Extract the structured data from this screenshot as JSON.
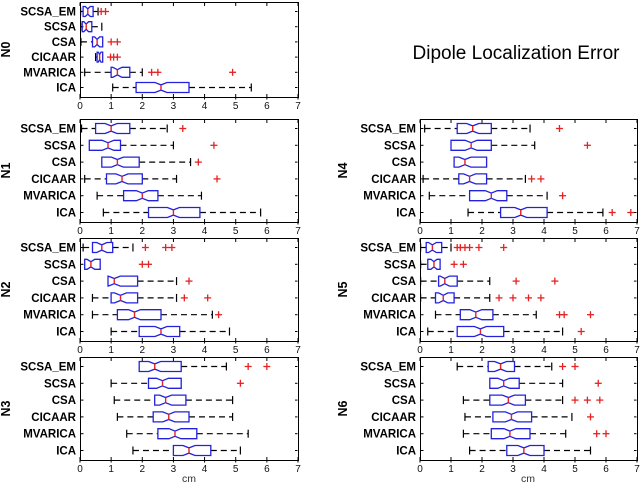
{
  "title": "Dipole Localization Error",
  "xlabel": "cm",
  "methods": [
    "SCSA_EM",
    "SCSA",
    "CSA",
    "CICAAR",
    "MVARICA",
    "ICA"
  ],
  "x_ticks": [
    "0",
    "1",
    "2",
    "3",
    "4",
    "5",
    "6",
    "7"
  ],
  "colors": {
    "box": "#2222dd",
    "median": "#e62222",
    "outlier": "#e62222",
    "whisker": "#000000",
    "axis": "#000000"
  },
  "chart_data": {
    "type": "box",
    "orientation": "horizontal",
    "title": "Dipole Localization Error",
    "xlabel": "cm",
    "xlim": [
      0,
      7
    ],
    "grid": false,
    "groups": [
      {
        "name": "N0",
        "boxes": [
          {
            "method": "SCSA_EM",
            "whislo": 0.02,
            "q1": 0.1,
            "med": 0.25,
            "q3": 0.42,
            "whishi": 0.58,
            "fliers": [
              0.68,
              0.82
            ]
          },
          {
            "method": "SCSA",
            "whislo": 0.02,
            "q1": 0.07,
            "med": 0.2,
            "q3": 0.38,
            "whishi": 0.7,
            "fliers": []
          },
          {
            "method": "CSA",
            "whislo": 0.03,
            "q1": 0.4,
            "med": 0.55,
            "q3": 0.73,
            "whishi": 0.73,
            "fliers": [
              1.0,
              1.2
            ]
          },
          {
            "method": "CICAAR",
            "whislo": 0.5,
            "q1": 0.55,
            "med": 0.63,
            "q3": 0.73,
            "whishi": 0.73,
            "fliers": [
              0.98,
              1.08,
              1.2
            ]
          },
          {
            "method": "MVARICA",
            "whislo": 0.15,
            "q1": 1.0,
            "med": 1.2,
            "q3": 1.6,
            "whishi": 2.0,
            "fliers": [
              2.3,
              2.5,
              4.9
            ]
          },
          {
            "method": "ICA",
            "whislo": 1.05,
            "q1": 1.8,
            "med": 2.6,
            "q3": 3.5,
            "whishi": 5.5,
            "fliers": []
          }
        ]
      },
      {
        "name": "N1",
        "boxes": [
          {
            "method": "SCSA_EM",
            "whislo": 0.05,
            "q1": 0.5,
            "med": 1.0,
            "q3": 1.6,
            "whishi": 2.8,
            "fliers": [
              3.3
            ]
          },
          {
            "method": "SCSA",
            "whislo": 0.3,
            "q1": 0.3,
            "med": 0.9,
            "q3": 1.3,
            "whishi": 3.0,
            "fliers": [
              4.3
            ]
          },
          {
            "method": "CSA",
            "whislo": 0.7,
            "q1": 0.7,
            "med": 1.2,
            "q3": 1.9,
            "whishi": 3.55,
            "fliers": [
              3.8
            ]
          },
          {
            "method": "CICAAR",
            "whislo": 0.15,
            "q1": 0.85,
            "med": 1.35,
            "q3": 2.0,
            "whishi": 3.1,
            "fliers": [
              4.4
            ]
          },
          {
            "method": "MVARICA",
            "whislo": 0.55,
            "q1": 1.4,
            "med": 2.0,
            "q3": 2.5,
            "whishi": 3.9,
            "fliers": []
          },
          {
            "method": "ICA",
            "whislo": 0.75,
            "q1": 2.2,
            "med": 3.0,
            "q3": 3.85,
            "whishi": 5.8,
            "fliers": []
          }
        ]
      },
      {
        "name": "N2",
        "boxes": [
          {
            "method": "SCSA_EM",
            "whislo": 0.1,
            "q1": 0.4,
            "med": 0.7,
            "q3": 1.05,
            "whishi": 1.7,
            "fliers": [
              2.1,
              2.75,
              2.95
            ]
          },
          {
            "method": "SCSA",
            "whislo": 0.15,
            "q1": 0.15,
            "med": 0.35,
            "q3": 0.65,
            "whishi": 0.65,
            "fliers": [
              2.0,
              2.2
            ]
          },
          {
            "method": "CSA",
            "whislo": 0.9,
            "q1": 0.9,
            "med": 1.1,
            "q3": 1.85,
            "whishi": 3.1,
            "fliers": [
              3.5
            ]
          },
          {
            "method": "CICAAR",
            "whislo": 0.4,
            "q1": 1.0,
            "med": 1.3,
            "q3": 1.85,
            "whishi": 3.1,
            "fliers": [
              3.35,
              4.1
            ]
          },
          {
            "method": "MVARICA",
            "whislo": 0.4,
            "q1": 1.2,
            "med": 1.75,
            "q3": 2.6,
            "whishi": 4.25,
            "fliers": [
              4.45
            ]
          },
          {
            "method": "ICA",
            "whislo": 1.0,
            "q1": 1.9,
            "med": 2.6,
            "q3": 3.2,
            "whishi": 4.8,
            "fliers": []
          }
        ]
      },
      {
        "name": "N3",
        "boxes": [
          {
            "method": "SCSA_EM",
            "whislo": 1.9,
            "q1": 1.9,
            "med": 2.4,
            "q3": 3.25,
            "whishi": 4.7,
            "fliers": [
              5.4,
              6.0
            ]
          },
          {
            "method": "SCSA",
            "whislo": 1.0,
            "q1": 2.2,
            "med": 2.65,
            "q3": 3.25,
            "whishi": 3.25,
            "fliers": [
              5.15
            ]
          },
          {
            "method": "CSA",
            "whislo": 1.1,
            "q1": 2.4,
            "med": 2.75,
            "q3": 3.4,
            "whishi": 4.9,
            "fliers": []
          },
          {
            "method": "CICAAR",
            "whislo": 1.2,
            "q1": 2.35,
            "med": 2.85,
            "q3": 3.5,
            "whishi": 4.9,
            "fliers": []
          },
          {
            "method": "MVARICA",
            "whislo": 1.5,
            "q1": 2.5,
            "med": 3.05,
            "q3": 3.75,
            "whishi": 5.4,
            "fliers": []
          },
          {
            "method": "ICA",
            "whislo": 1.7,
            "q1": 3.0,
            "med": 3.5,
            "q3": 4.2,
            "whishi": 5.15,
            "fliers": []
          }
        ]
      },
      {
        "name": "N4",
        "boxes": [
          {
            "method": "SCSA_EM",
            "whislo": 0.15,
            "q1": 1.2,
            "med": 1.7,
            "q3": 2.3,
            "whishi": 3.55,
            "fliers": [
              4.5
            ]
          },
          {
            "method": "SCSA",
            "whislo": 1.0,
            "q1": 1.0,
            "med": 1.65,
            "q3": 2.3,
            "whishi": 3.7,
            "fliers": [
              5.4
            ]
          },
          {
            "method": "CSA",
            "whislo": 1.1,
            "q1": 1.1,
            "med": 1.45,
            "q3": 2.15,
            "whishi": 2.15,
            "fliers": []
          },
          {
            "method": "CICAAR",
            "whislo": 0.1,
            "q1": 1.25,
            "med": 1.6,
            "q3": 2.15,
            "whishi": 3.4,
            "fliers": [
              3.6,
              3.9
            ]
          },
          {
            "method": "MVARICA",
            "whislo": 0.3,
            "q1": 1.6,
            "med": 2.3,
            "q3": 2.8,
            "whishi": 4.1,
            "fliers": [
              4.6
            ]
          },
          {
            "method": "ICA",
            "whislo": 1.55,
            "q1": 2.6,
            "med": 3.25,
            "q3": 4.1,
            "whishi": 5.9,
            "fliers": [
              6.2,
              6.8
            ]
          }
        ]
      },
      {
        "name": "N5",
        "boxes": [
          {
            "method": "SCSA_EM",
            "whislo": 0.02,
            "q1": 0.2,
            "med": 0.4,
            "q3": 0.7,
            "whishi": 1.0,
            "fliers": [
              1.2,
              1.3,
              1.45,
              1.6,
              1.9,
              2.7
            ]
          },
          {
            "method": "SCSA",
            "whislo": 0.02,
            "q1": 0.25,
            "med": 0.45,
            "q3": 0.65,
            "whishi": 0.65,
            "fliers": [
              1.1,
              1.4
            ]
          },
          {
            "method": "CSA",
            "whislo": 0.02,
            "q1": 0.6,
            "med": 0.8,
            "q3": 1.2,
            "whishi": 2.25,
            "fliers": [
              3.1,
              4.35
            ]
          },
          {
            "method": "CICAAR",
            "whislo": 0.02,
            "q1": 0.5,
            "med": 0.75,
            "q3": 1.1,
            "whishi": 2.25,
            "fliers": [
              2.55,
              3.0,
              3.5,
              3.9
            ]
          },
          {
            "method": "MVARICA",
            "whislo": 0.5,
            "q1": 1.3,
            "med": 1.8,
            "q3": 2.35,
            "whishi": 3.75,
            "fliers": [
              4.5,
              4.65,
              5.5
            ]
          },
          {
            "method": "ICA",
            "whislo": 0.25,
            "q1": 1.2,
            "med": 1.95,
            "q3": 2.7,
            "whishi": 4.6,
            "fliers": [
              5.2
            ]
          }
        ]
      },
      {
        "name": "N6",
        "boxes": [
          {
            "method": "SCSA_EM",
            "whislo": 1.2,
            "q1": 2.2,
            "med": 2.6,
            "q3": 3.05,
            "whishi": 4.25,
            "fliers": [
              4.6,
              5.0
            ]
          },
          {
            "method": "SCSA",
            "whislo": 2.25,
            "q1": 2.25,
            "med": 2.7,
            "q3": 3.2,
            "whishi": 4.6,
            "fliers": [
              5.75
            ]
          },
          {
            "method": "CSA",
            "whislo": 1.4,
            "q1": 2.25,
            "med": 2.85,
            "q3": 3.4,
            "whishi": 4.6,
            "fliers": [
              5.0,
              5.4,
              5.8
            ]
          },
          {
            "method": "CICAAR",
            "whislo": 1.45,
            "q1": 2.35,
            "med": 2.95,
            "q3": 3.6,
            "whishi": 4.9,
            "fliers": [
              5.5
            ]
          },
          {
            "method": "MVARICA",
            "whislo": 1.4,
            "q1": 2.3,
            "med": 2.9,
            "q3": 3.55,
            "whishi": 4.7,
            "fliers": [
              5.7,
              6.0
            ]
          },
          {
            "method": "ICA",
            "whislo": 1.6,
            "q1": 2.8,
            "med": 3.35,
            "q3": 4.0,
            "whishi": 5.5,
            "fliers": []
          }
        ]
      }
    ]
  }
}
